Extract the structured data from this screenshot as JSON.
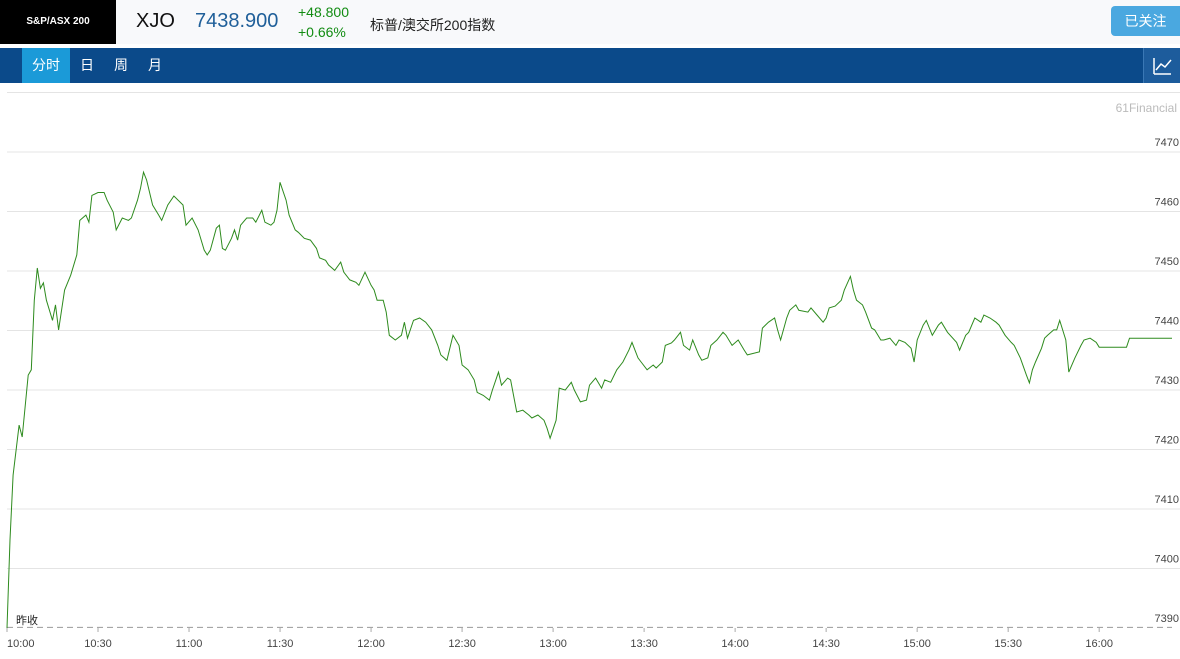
{
  "header": {
    "logo": "S&P/ASX 200",
    "symbol": "XJO",
    "price": "7438.900",
    "change": "+48.800",
    "change_pct": "+0.66%",
    "name": "标普/澳交所200指数",
    "follow_button": "已关注"
  },
  "tabs": [
    "分时",
    "日",
    "周",
    "月"
  ],
  "watermark": "61Financial",
  "chart_data": {
    "type": "line",
    "x": [
      600,
      601,
      602,
      604,
      605,
      607,
      608,
      609,
      610,
      611,
      612,
      613,
      615,
      616,
      617,
      619,
      621,
      623,
      624,
      626,
      627,
      628,
      630,
      632,
      633,
      635,
      636,
      638,
      640,
      641,
      643,
      644,
      645,
      646,
      648,
      650,
      651,
      653,
      655,
      658,
      659,
      661,
      663,
      665,
      666,
      667,
      669,
      670,
      671,
      672,
      674,
      675,
      676,
      677,
      679,
      681,
      682,
      684,
      685,
      687,
      688,
      689,
      690,
      692,
      693,
      695,
      696,
      698,
      700,
      702,
      703,
      705,
      706,
      708,
      710,
      711,
      713,
      715,
      716,
      718,
      720,
      721,
      722,
      724,
      725,
      726,
      728,
      730,
      731,
      732,
      734,
      736,
      738,
      740,
      742,
      743,
      745,
      747,
      749,
      750,
      752,
      754,
      755,
      757,
      759,
      760,
      762,
      763,
      765,
      766,
      768,
      770,
      772,
      773,
      775,
      777,
      778,
      779,
      781,
      782,
      784,
      786,
      787,
      789,
      791,
      792,
      794,
      796,
      797,
      799,
      801,
      803,
      805,
      806,
      808,
      809,
      811,
      813,
      814,
      816,
      817,
      819,
      820,
      822,
      823,
      825,
      826,
      828,
      829,
      831,
      832,
      834,
      836,
      837,
      839,
      841,
      843,
      844,
      848,
      849,
      851,
      853,
      854,
      855,
      857,
      858,
      860,
      861,
      864,
      865,
      867,
      869,
      870,
      871,
      873,
      875,
      876,
      878,
      879,
      880,
      882,
      883,
      885,
      886,
      888,
      889,
      891,
      893,
      894,
      896,
      898,
      899,
      900,
      902,
      903,
      905,
      907,
      908,
      910,
      913,
      914,
      916,
      917,
      919,
      921,
      922,
      924,
      926,
      927,
      929,
      931,
      932,
      934,
      936,
      937,
      938,
      939,
      941,
      942,
      943,
      945,
      946,
      947,
      949,
      950,
      952,
      954,
      955,
      957,
      959,
      960,
      969,
      970,
      984
    ],
    "series": [
      {
        "name": "XJO",
        "color": "#2e8b1e",
        "values": [
          7390.0,
          7404.8,
          7415.7,
          7424.1,
          7422.1,
          7432.5,
          7433.4,
          7445.1,
          7450.5,
          7447.1,
          7448.0,
          7445.1,
          7441.7,
          7444.3,
          7440.1,
          7446.8,
          7449.3,
          7452.7,
          7458.5,
          7459.4,
          7458.2,
          7462.7,
          7463.2,
          7463.2,
          7461.9,
          7459.9,
          7456.9,
          7458.9,
          7458.5,
          7458.9,
          7461.9,
          7463.9,
          7466.6,
          7465.3,
          7461.1,
          7459.4,
          7458.5,
          7461.1,
          7462.6,
          7461.1,
          7457.7,
          7458.9,
          7456.9,
          7453.5,
          7452.7,
          7453.5,
          7457.2,
          7457.7,
          7453.8,
          7453.5,
          7455.5,
          7456.9,
          7455.2,
          7457.7,
          7458.9,
          7458.9,
          7458.2,
          7460.2,
          7458.2,
          7457.7,
          7458.2,
          7460.2,
          7464.9,
          7461.9,
          7459.4,
          7456.9,
          7456.5,
          7455.5,
          7455.2,
          7453.8,
          7452.2,
          7451.8,
          7451.0,
          7450.1,
          7451.5,
          7449.8,
          7448.5,
          7448.1,
          7447.6,
          7449.8,
          7447.6,
          7446.8,
          7445.1,
          7445.1,
          7443.1,
          7439.2,
          7438.4,
          7439.2,
          7441.4,
          7438.7,
          7441.7,
          7442.1,
          7441.4,
          7440.1,
          7437.5,
          7435.9,
          7435.0,
          7439.2,
          7437.5,
          7434.2,
          7433.4,
          7431.7,
          7429.6,
          7429.1,
          7428.3,
          7430.0,
          7433.0,
          7430.8,
          7432.0,
          7431.7,
          7426.3,
          7426.6,
          7425.8,
          7425.3,
          7425.8,
          7424.9,
          7423.6,
          7421.9,
          7424.9,
          7430.3,
          7430.0,
          7431.3,
          7430.0,
          7428.0,
          7428.3,
          7430.8,
          7432.0,
          7430.3,
          7431.7,
          7431.3,
          7433.4,
          7434.7,
          7436.7,
          7438.0,
          7435.4,
          7434.7,
          7433.4,
          7434.2,
          7433.7,
          7434.7,
          7437.5,
          7437.9,
          7438.4,
          7439.7,
          7437.5,
          7436.7,
          7438.4,
          7435.9,
          7435.0,
          7435.4,
          7437.5,
          7438.4,
          7439.7,
          7439.2,
          7437.5,
          7438.4,
          7436.7,
          7435.9,
          7436.4,
          7440.4,
          7441.4,
          7442.1,
          7440.1,
          7438.4,
          7442.1,
          7443.4,
          7444.3,
          7443.4,
          7443.1,
          7443.8,
          7442.6,
          7441.4,
          7442.1,
          7443.8,
          7444.1,
          7445.1,
          7446.8,
          7449.1,
          7446.8,
          7445.1,
          7444.3,
          7443.1,
          7440.4,
          7440.1,
          7438.4,
          7438.4,
          7438.7,
          7437.5,
          7438.4,
          7438.0,
          7437.0,
          7434.7,
          7438.4,
          7440.9,
          7441.7,
          7439.2,
          7440.9,
          7441.4,
          7439.7,
          7438.0,
          7436.7,
          7439.2,
          7439.7,
          7442.1,
          7441.4,
          7442.6,
          7442.1,
          7441.4,
          7440.9,
          7439.2,
          7438.0,
          7437.5,
          7435.4,
          7432.5,
          7431.2,
          7433.4,
          7434.7,
          7437.0,
          7438.7,
          7439.2,
          7440.1,
          7440.1,
          7441.7,
          7438.4,
          7433.0,
          7435.4,
          7437.5,
          7438.4,
          7438.7,
          7438.0,
          7437.2,
          7437.2,
          7438.7,
          7438.7
        ]
      }
    ],
    "xlim": [
      600,
      984
    ],
    "xticks": [
      {
        "value": 600,
        "label": "10:00"
      },
      {
        "value": 630,
        "label": "10:30"
      },
      {
        "value": 660,
        "label": "11:00"
      },
      {
        "value": 690,
        "label": "11:30"
      },
      {
        "value": 720,
        "label": "12:00"
      },
      {
        "value": 750,
        "label": "12:30"
      },
      {
        "value": 780,
        "label": "13:00"
      },
      {
        "value": 810,
        "label": "13:30"
      },
      {
        "value": 840,
        "label": "14:00"
      },
      {
        "value": 870,
        "label": "14:30"
      },
      {
        "value": 900,
        "label": "15:00"
      },
      {
        "value": 930,
        "label": "15:30"
      },
      {
        "value": 960,
        "label": "16:00"
      }
    ],
    "ylim": [
      7390,
      7480
    ],
    "yticks": [
      7390,
      7400,
      7410,
      7420,
      7430,
      7440,
      7450,
      7460,
      7470
    ],
    "grid": true,
    "prev_close": {
      "label": "昨收",
      "value": 7390.1
    }
  }
}
